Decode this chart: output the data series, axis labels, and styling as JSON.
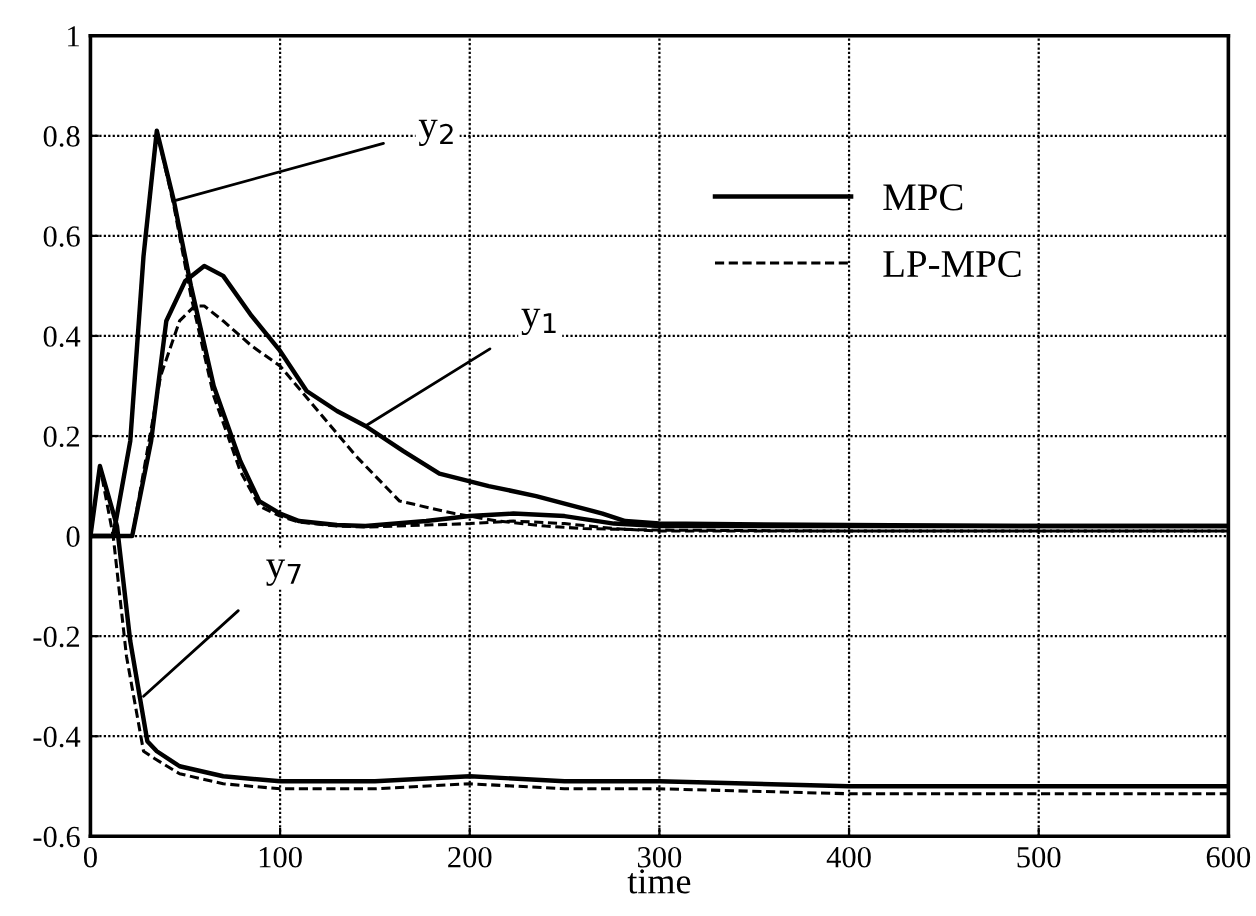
{
  "chart_data": {
    "type": "line",
    "xlabel": "time",
    "xlim": [
      0,
      600
    ],
    "ylim": [
      -0.6,
      1
    ],
    "xticks": [
      0,
      100,
      200,
      300,
      400,
      500,
      600
    ],
    "yticks": [
      -0.6,
      -0.4,
      -0.2,
      0,
      0.2,
      0.4,
      0.6,
      0.8,
      1
    ],
    "grid": true,
    "legend": "top right",
    "marker": "none",
    "series": [
      {
        "name": "MPC",
        "color": "#000000",
        "line_style": "solid",
        "x": [
          0,
          22,
          32,
          40,
          50,
          60,
          70,
          85,
          100,
          114,
          130,
          145,
          165,
          184,
          210,
          235,
          255,
          270,
          282,
          300,
          400,
          500,
          600
        ],
        "values": [
          0,
          0,
          0.19,
          0.43,
          0.51,
          0.54,
          0.52,
          0.44,
          0.37,
          0.29,
          0.25,
          0.22,
          0.17,
          0.125,
          0.1,
          0.08,
          0.06,
          0.045,
          0.03,
          0.025,
          0.022,
          0.02,
          0.02
        ]
      },
      {
        "name": "LP-MPC",
        "color": "#000000",
        "line_style": "dashed",
        "x": [
          0,
          22,
          37,
          47,
          55,
          60,
          70,
          85,
          100,
          120,
          140,
          163,
          192,
          215,
          240,
          260,
          300,
          400,
          500,
          600
        ],
        "values": [
          0,
          0,
          0.32,
          0.43,
          0.46,
          0.46,
          0.43,
          0.38,
          0.34,
          0.25,
          0.16,
          0.07,
          0.045,
          0.03,
          0.02,
          0.015,
          0.012,
          0.01,
          0.01,
          0.01
        ]
      },
      {
        "color": "#000000",
        "line_style": "solid",
        "x": [
          0,
          12,
          21,
          28,
          35,
          44,
          53,
          65,
          79,
          89,
          100,
          110,
          130,
          145,
          177,
          200,
          223,
          250,
          276,
          300,
          400,
          500,
          600
        ],
        "values": [
          0,
          0,
          0.19,
          0.56,
          0.81,
          0.67,
          0.5,
          0.3,
          0.15,
          0.07,
          0.045,
          0.03,
          0.022,
          0.02,
          0.03,
          0.04,
          0.045,
          0.04,
          0.025,
          0.02,
          0.02,
          0.02,
          0.02
        ]
      },
      {
        "color": "#000000",
        "line_style": "dashed",
        "x": [
          0,
          12,
          21,
          28,
          35,
          44,
          53,
          65,
          79,
          89,
          100,
          110,
          130,
          145,
          177,
          200,
          223,
          250,
          276,
          300,
          400,
          500,
          600
        ],
        "values": [
          0,
          0,
          0.19,
          0.56,
          0.81,
          0.66,
          0.48,
          0.28,
          0.13,
          0.06,
          0.04,
          0.028,
          0.02,
          0.018,
          0.022,
          0.025,
          0.03,
          0.025,
          0.015,
          0.01,
          0.01,
          0.01,
          0.01
        ]
      },
      {
        "color": "#000000",
        "line_style": "solid",
        "x": [
          0,
          5,
          14,
          21,
          30,
          35,
          47,
          70,
          100,
          150,
          200,
          250,
          300,
          400,
          500,
          600
        ],
        "values": [
          0,
          0.14,
          0.02,
          -0.21,
          -0.41,
          -0.43,
          -0.46,
          -0.48,
          -0.49,
          -0.49,
          -0.48,
          -0.49,
          -0.49,
          -0.5,
          -0.5,
          -0.5
        ]
      },
      {
        "color": "#000000",
        "line_style": "dashed",
        "x": [
          0,
          5,
          12,
          19,
          28,
          34,
          47,
          70,
          100,
          150,
          200,
          250,
          300,
          400,
          500,
          600
        ],
        "values": [
          0,
          0.14,
          0.0,
          -0.24,
          -0.43,
          -0.445,
          -0.475,
          -0.495,
          -0.505,
          -0.505,
          -0.495,
          -0.505,
          -0.505,
          -0.515,
          -0.515,
          -0.515
        ]
      }
    ],
    "annotations": [
      {
        "text": "y$_{2}$",
        "x": 44,
        "y": 0.67
      },
      {
        "text": "y$_{1}$",
        "x": 145,
        "y": 0.22
      },
      {
        "text": "y$_{7}$",
        "x": 28,
        "y": -0.32
      }
    ]
  }
}
